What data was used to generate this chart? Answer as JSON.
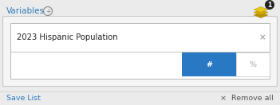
{
  "bg_color": "#ebebeb",
  "panel_bg": "#ffffff",
  "panel_border": "#c8c8c8",
  "card_border": "#b8b8b8",
  "card_bg": "#f5f5f5",
  "inner_bg": "#ffffff",
  "variables_label": "Variables",
  "variables_color": "#2e7bb5",
  "plus_circle_color": "#888888",
  "variable_name": "2023 Hispanic Population",
  "variable_name_color": "#222222",
  "close_x": "×",
  "close_color": "#888888",
  "hash_label": "#",
  "percent_label": "%",
  "hash_btn_bg": "#2878c3",
  "hash_btn_fg": "#ffffff",
  "percent_btn_fg": "#aaaaaa",
  "btn_border": "#cccccc",
  "save_label": "Save List",
  "save_color": "#2878c3",
  "remove_label": "Remove all",
  "remove_color": "#555555",
  "remove_x": "×",
  "layers_colors": [
    "#e8c818",
    "#d4a800",
    "#b89000"
  ],
  "badge_bg": "#222222",
  "badge_text": "1",
  "title_fontsize": 7.5,
  "var_fontsize": 7.2,
  "btn_fontsize": 6.8,
  "footer_fontsize": 6.8,
  "badge_fontsize": 5.5
}
